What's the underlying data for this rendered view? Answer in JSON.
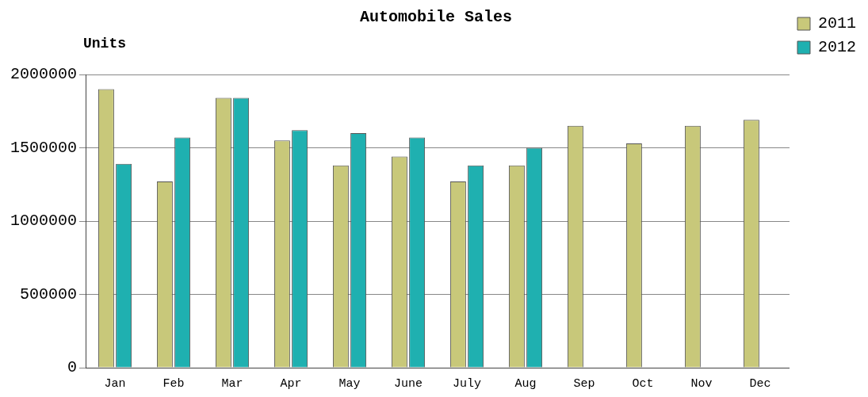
{
  "chart_data": {
    "type": "bar",
    "title": "Automobile Sales",
    "ylabel": "Units",
    "categories": [
      "Jan",
      "Feb",
      "Mar",
      "Apr",
      "May",
      "June",
      "July",
      "Aug",
      "Sep",
      "Oct",
      "Nov",
      "Dec"
    ],
    "series": [
      {
        "name": "2011",
        "color": "#c8c87a",
        "values": [
          1900000,
          1270000,
          1840000,
          1550000,
          1380000,
          1440000,
          1270000,
          1380000,
          1650000,
          1530000,
          1650000,
          1690000
        ]
      },
      {
        "name": "2012",
        "color": "#1fb0b0",
        "values": [
          1390000,
          1570000,
          1840000,
          1620000,
          1600000,
          1570000,
          1380000,
          1500000,
          null,
          null,
          null,
          null
        ]
      }
    ],
    "ylim": [
      0,
      2000000
    ],
    "yticks": [
      0,
      500000,
      1000000,
      1500000,
      2000000
    ],
    "grid": "y",
    "legend": "top right"
  }
}
